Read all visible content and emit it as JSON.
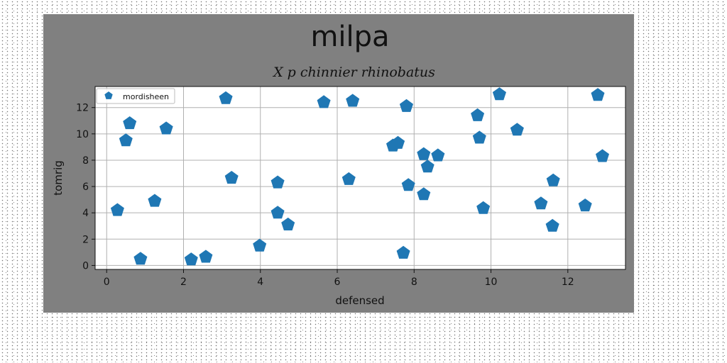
{
  "chart_data": {
    "type": "scatter",
    "title": "milpa",
    "subtitle": "X p chinnier rhinobatus",
    "xlabel": "defensed",
    "ylabel": "tomrig",
    "xlim": [
      -0.3,
      13.5
    ],
    "ylim": [
      -0.3,
      13.6
    ],
    "xticks": [
      "0",
      "2",
      "4",
      "6",
      "8",
      "10",
      "12"
    ],
    "yticks": [
      "0",
      "2",
      "4",
      "6",
      "8",
      "10",
      "12"
    ],
    "grid": true,
    "legend_position": "top-left",
    "series": [
      {
        "name": "mordisheen",
        "color": "#1f77b4",
        "marker": "pentagon",
        "points": [
          [
            0.28,
            4.2
          ],
          [
            0.5,
            9.5
          ],
          [
            0.6,
            10.8
          ],
          [
            0.88,
            0.5
          ],
          [
            1.25,
            4.9
          ],
          [
            1.55,
            10.4
          ],
          [
            2.2,
            0.45
          ],
          [
            2.58,
            0.65
          ],
          [
            3.1,
            12.7
          ],
          [
            3.25,
            6.65
          ],
          [
            3.98,
            1.5
          ],
          [
            4.45,
            6.3
          ],
          [
            4.45,
            4.0
          ],
          [
            4.72,
            3.1
          ],
          [
            5.65,
            12.4
          ],
          [
            6.3,
            6.55
          ],
          [
            6.4,
            12.5
          ],
          [
            7.45,
            9.1
          ],
          [
            7.58,
            9.3
          ],
          [
            7.72,
            0.95
          ],
          [
            7.8,
            12.1
          ],
          [
            7.85,
            6.1
          ],
          [
            8.25,
            8.45
          ],
          [
            8.25,
            5.4
          ],
          [
            8.35,
            7.5
          ],
          [
            8.62,
            8.35
          ],
          [
            9.65,
            11.4
          ],
          [
            9.7,
            9.7
          ],
          [
            9.8,
            4.35
          ],
          [
            10.22,
            13.0
          ],
          [
            10.68,
            10.3
          ],
          [
            11.3,
            4.7
          ],
          [
            11.6,
            3.0
          ],
          [
            11.62,
            6.45
          ],
          [
            12.45,
            4.55
          ],
          [
            12.78,
            12.95
          ],
          [
            12.9,
            8.3
          ]
        ]
      }
    ]
  }
}
